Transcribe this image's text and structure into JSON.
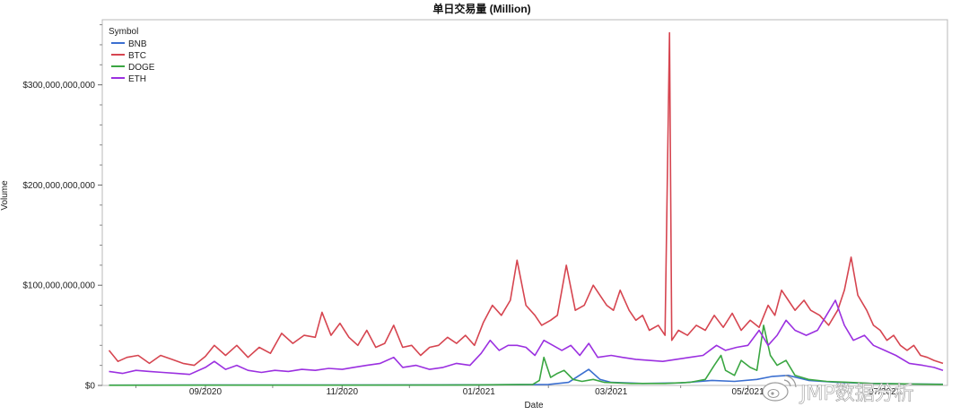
{
  "watermark": "JMP数据分析",
  "chart_data": {
    "type": "line",
    "title": "单日交易量 (Million)",
    "xlabel": "Date",
    "ylabel": "Volume",
    "legend_title": "Symbol",
    "legend_position": "top-left",
    "ylim": [
      0,
      365000000000
    ],
    "xlim": [
      "2020-07-17",
      "2021-07-29"
    ],
    "y_ticks": [
      0,
      100000000000,
      200000000000,
      300000000000
    ],
    "y_tick_labels": [
      "$0",
      "$100,000,000,000",
      "$200,000,000,000",
      "$300,000,000,000"
    ],
    "x_ticks": [
      "2020-09-01",
      "2020-11-01",
      "2021-01-01",
      "2021-03-01",
      "2021-05-01",
      "2021-07-01"
    ],
    "x_tick_labels": [
      "09/2020",
      "11/2020",
      "01/2021",
      "03/2021",
      "05/2021",
      "07/2021"
    ],
    "colors": {
      "BNB": "#3b6fd0",
      "BTC": "#d64550",
      "DOGE": "#3aa642",
      "ETH": "#9b30e0"
    },
    "series": [
      {
        "name": "BNB",
        "points": [
          [
            "2020-07-20",
            0.3
          ],
          [
            "2020-09-01",
            0.4
          ],
          [
            "2020-11-01",
            0.4
          ],
          [
            "2020-12-15",
            0.5
          ],
          [
            "2021-01-01",
            0.6
          ],
          [
            "2021-01-20",
            0.8
          ],
          [
            "2021-02-01",
            1.0
          ],
          [
            "2021-02-10",
            3.0
          ],
          [
            "2021-02-19",
            16.0
          ],
          [
            "2021-02-24",
            6.0
          ],
          [
            "2021-03-01",
            3.0
          ],
          [
            "2021-03-15",
            2.0
          ],
          [
            "2021-04-01",
            2.5
          ],
          [
            "2021-04-15",
            5.0
          ],
          [
            "2021-04-25",
            4.0
          ],
          [
            "2021-05-05",
            6.0
          ],
          [
            "2021-05-12",
            9.0
          ],
          [
            "2021-05-19",
            10.0
          ],
          [
            "2021-05-28",
            5.0
          ],
          [
            "2021-06-10",
            3.0
          ],
          [
            "2021-06-25",
            2.0
          ],
          [
            "2021-07-10",
            1.5
          ],
          [
            "2021-07-27",
            1.2
          ]
        ]
      },
      {
        "name": "BTC",
        "points": [
          [
            "2020-07-20",
            35
          ],
          [
            "2020-07-24",
            24
          ],
          [
            "2020-07-28",
            28
          ],
          [
            "2020-08-02",
            30
          ],
          [
            "2020-08-07",
            22
          ],
          [
            "2020-08-12",
            30
          ],
          [
            "2020-08-17",
            26
          ],
          [
            "2020-08-22",
            22
          ],
          [
            "2020-08-27",
            20
          ],
          [
            "2020-09-01",
            29
          ],
          [
            "2020-09-05",
            40
          ],
          [
            "2020-09-10",
            30
          ],
          [
            "2020-09-15",
            40
          ],
          [
            "2020-09-20",
            28
          ],
          [
            "2020-09-25",
            38
          ],
          [
            "2020-09-30",
            32
          ],
          [
            "2020-10-05",
            52
          ],
          [
            "2020-10-10",
            42
          ],
          [
            "2020-10-15",
            50
          ],
          [
            "2020-10-20",
            48
          ],
          [
            "2020-10-23",
            73
          ],
          [
            "2020-10-27",
            50
          ],
          [
            "2020-10-31",
            62
          ],
          [
            "2020-11-04",
            48
          ],
          [
            "2020-11-08",
            40
          ],
          [
            "2020-11-12",
            55
          ],
          [
            "2020-11-16",
            38
          ],
          [
            "2020-11-20",
            42
          ],
          [
            "2020-11-24",
            60
          ],
          [
            "2020-11-28",
            38
          ],
          [
            "2020-12-02",
            40
          ],
          [
            "2020-12-06",
            30
          ],
          [
            "2020-12-10",
            38
          ],
          [
            "2020-12-14",
            40
          ],
          [
            "2020-12-18",
            48
          ],
          [
            "2020-12-22",
            42
          ],
          [
            "2020-12-26",
            50
          ],
          [
            "2020-12-30",
            40
          ],
          [
            "2021-01-03",
            63
          ],
          [
            "2021-01-07",
            80
          ],
          [
            "2021-01-11",
            70
          ],
          [
            "2021-01-15",
            85
          ],
          [
            "2021-01-18",
            125
          ],
          [
            "2021-01-22",
            80
          ],
          [
            "2021-01-26",
            70
          ],
          [
            "2021-01-29",
            60
          ],
          [
            "2021-02-02",
            65
          ],
          [
            "2021-02-05",
            70
          ],
          [
            "2021-02-09",
            120
          ],
          [
            "2021-02-13",
            75
          ],
          [
            "2021-02-17",
            80
          ],
          [
            "2021-02-21",
            100
          ],
          [
            "2021-02-24",
            90
          ],
          [
            "2021-02-27",
            80
          ],
          [
            "2021-03-02",
            75
          ],
          [
            "2021-03-05",
            95
          ],
          [
            "2021-03-09",
            75
          ],
          [
            "2021-03-12",
            65
          ],
          [
            "2021-03-15",
            70
          ],
          [
            "2021-03-18",
            55
          ],
          [
            "2021-03-22",
            60
          ],
          [
            "2021-03-25",
            50
          ],
          [
            "2021-03-27",
            352
          ],
          [
            "2021-03-28",
            45
          ],
          [
            "2021-03-31",
            55
          ],
          [
            "2021-04-04",
            50
          ],
          [
            "2021-04-08",
            60
          ],
          [
            "2021-04-12",
            55
          ],
          [
            "2021-04-16",
            70
          ],
          [
            "2021-04-20",
            58
          ],
          [
            "2021-04-24",
            72
          ],
          [
            "2021-04-28",
            55
          ],
          [
            "2021-05-02",
            65
          ],
          [
            "2021-05-06",
            58
          ],
          [
            "2021-05-10",
            80
          ],
          [
            "2021-05-13",
            70
          ],
          [
            "2021-05-16",
            95
          ],
          [
            "2021-05-19",
            85
          ],
          [
            "2021-05-22",
            75
          ],
          [
            "2021-05-26",
            85
          ],
          [
            "2021-05-29",
            75
          ],
          [
            "2021-06-02",
            70
          ],
          [
            "2021-06-06",
            60
          ],
          [
            "2021-06-10",
            75
          ],
          [
            "2021-06-13",
            95
          ],
          [
            "2021-06-16",
            128
          ],
          [
            "2021-06-19",
            90
          ],
          [
            "2021-06-23",
            75
          ],
          [
            "2021-06-26",
            60
          ],
          [
            "2021-06-29",
            55
          ],
          [
            "2021-07-02",
            45
          ],
          [
            "2021-07-05",
            50
          ],
          [
            "2021-07-08",
            40
          ],
          [
            "2021-07-11",
            35
          ],
          [
            "2021-07-14",
            40
          ],
          [
            "2021-07-17",
            30
          ],
          [
            "2021-07-20",
            28
          ],
          [
            "2021-07-23",
            25
          ],
          [
            "2021-07-27",
            22
          ]
        ]
      },
      {
        "name": "DOGE",
        "points": [
          [
            "2020-07-20",
            0.2
          ],
          [
            "2020-09-01",
            0.3
          ],
          [
            "2020-11-01",
            0.3
          ],
          [
            "2020-12-15",
            0.4
          ],
          [
            "2021-01-01",
            0.5
          ],
          [
            "2021-01-25",
            1.0
          ],
          [
            "2021-01-28",
            5.0
          ],
          [
            "2021-01-30",
            28.0
          ],
          [
            "2021-02-02",
            8.0
          ],
          [
            "2021-02-05",
            12.0
          ],
          [
            "2021-02-08",
            15.0
          ],
          [
            "2021-02-12",
            6.0
          ],
          [
            "2021-02-16",
            4.0
          ],
          [
            "2021-02-21",
            6.0
          ],
          [
            "2021-02-26",
            3.0
          ],
          [
            "2021-03-10",
            2.0
          ],
          [
            "2021-03-25",
            2.0
          ],
          [
            "2021-04-05",
            3.0
          ],
          [
            "2021-04-12",
            6.0
          ],
          [
            "2021-04-16",
            20.0
          ],
          [
            "2021-04-19",
            30.0
          ],
          [
            "2021-04-21",
            15.0
          ],
          [
            "2021-04-25",
            10.0
          ],
          [
            "2021-04-28",
            25.0
          ],
          [
            "2021-05-02",
            18.0
          ],
          [
            "2021-05-05",
            15.0
          ],
          [
            "2021-05-08",
            60.0
          ],
          [
            "2021-05-11",
            30.0
          ],
          [
            "2021-05-14",
            20.0
          ],
          [
            "2021-05-18",
            25.0
          ],
          [
            "2021-05-22",
            10.0
          ],
          [
            "2021-05-28",
            6.0
          ],
          [
            "2021-06-05",
            4.0
          ],
          [
            "2021-06-15",
            3.0
          ],
          [
            "2021-06-25",
            2.0
          ],
          [
            "2021-07-10",
            1.5
          ],
          [
            "2021-07-27",
            1.0
          ]
        ]
      },
      {
        "name": "ETH",
        "points": [
          [
            "2020-07-20",
            14
          ],
          [
            "2020-07-26",
            12
          ],
          [
            "2020-08-01",
            15
          ],
          [
            "2020-08-07",
            14
          ],
          [
            "2020-08-13",
            13
          ],
          [
            "2020-08-19",
            12
          ],
          [
            "2020-08-25",
            11
          ],
          [
            "2020-09-01",
            18
          ],
          [
            "2020-09-05",
            24
          ],
          [
            "2020-09-10",
            16
          ],
          [
            "2020-09-15",
            20
          ],
          [
            "2020-09-20",
            15
          ],
          [
            "2020-09-26",
            13
          ],
          [
            "2020-10-02",
            15
          ],
          [
            "2020-10-08",
            14
          ],
          [
            "2020-10-14",
            16
          ],
          [
            "2020-10-20",
            15
          ],
          [
            "2020-10-26",
            17
          ],
          [
            "2020-11-01",
            16
          ],
          [
            "2020-11-06",
            18
          ],
          [
            "2020-11-12",
            20
          ],
          [
            "2020-11-18",
            22
          ],
          [
            "2020-11-24",
            28
          ],
          [
            "2020-11-28",
            18
          ],
          [
            "2020-12-04",
            20
          ],
          [
            "2020-12-10",
            16
          ],
          [
            "2020-12-16",
            18
          ],
          [
            "2020-12-22",
            22
          ],
          [
            "2020-12-28",
            20
          ],
          [
            "2021-01-02",
            32
          ],
          [
            "2021-01-06",
            45
          ],
          [
            "2021-01-10",
            35
          ],
          [
            "2021-01-14",
            40
          ],
          [
            "2021-01-18",
            40
          ],
          [
            "2021-01-22",
            38
          ],
          [
            "2021-01-26",
            30
          ],
          [
            "2021-01-30",
            45
          ],
          [
            "2021-02-03",
            40
          ],
          [
            "2021-02-07",
            35
          ],
          [
            "2021-02-11",
            40
          ],
          [
            "2021-02-15",
            30
          ],
          [
            "2021-02-19",
            42
          ],
          [
            "2021-02-23",
            28
          ],
          [
            "2021-03-01",
            30
          ],
          [
            "2021-03-06",
            28
          ],
          [
            "2021-03-12",
            26
          ],
          [
            "2021-03-18",
            25
          ],
          [
            "2021-03-24",
            24
          ],
          [
            "2021-03-30",
            26
          ],
          [
            "2021-04-05",
            28
          ],
          [
            "2021-04-11",
            30
          ],
          [
            "2021-04-17",
            40
          ],
          [
            "2021-04-21",
            35
          ],
          [
            "2021-04-26",
            38
          ],
          [
            "2021-05-01",
            40
          ],
          [
            "2021-05-06",
            55
          ],
          [
            "2021-05-10",
            40
          ],
          [
            "2021-05-14",
            50
          ],
          [
            "2021-05-18",
            65
          ],
          [
            "2021-05-22",
            55
          ],
          [
            "2021-05-27",
            50
          ],
          [
            "2021-06-01",
            55
          ],
          [
            "2021-06-05",
            70
          ],
          [
            "2021-06-09",
            85
          ],
          [
            "2021-06-13",
            60
          ],
          [
            "2021-06-17",
            45
          ],
          [
            "2021-06-22",
            50
          ],
          [
            "2021-06-26",
            40
          ],
          [
            "2021-07-01",
            35
          ],
          [
            "2021-07-06",
            30
          ],
          [
            "2021-07-12",
            22
          ],
          [
            "2021-07-18",
            20
          ],
          [
            "2021-07-23",
            18
          ],
          [
            "2021-07-27",
            15
          ]
        ]
      }
    ]
  }
}
